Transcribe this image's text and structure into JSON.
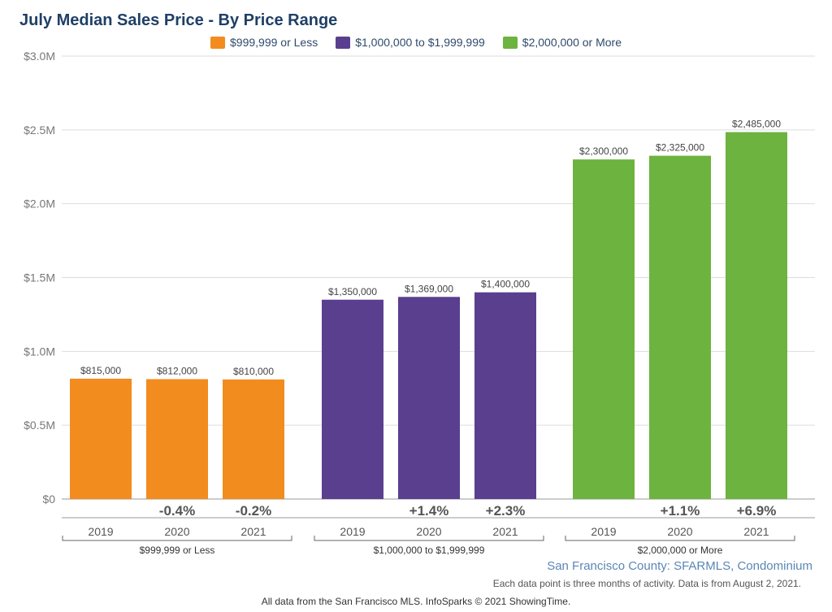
{
  "title": "July Median Sales Price - By Price Range",
  "legend": [
    {
      "label": "$999,999 or Less",
      "color": "#f28c1e"
    },
    {
      "label": "$1,000,000 to $1,999,999",
      "color": "#5a3f8f"
    },
    {
      "label": "$2,000,000 or More",
      "color": "#6db33f"
    }
  ],
  "source": "San Francisco County: SFARMLS, Condominium",
  "note": "Each data point is three months of activity. Data is from August 2, 2021.",
  "footer": "All data from the San Francisco MLS. InfoSparks © 2021 ShowingTime.",
  "chart_data": {
    "type": "bar",
    "title": "July Median Sales Price - By Price Range",
    "ylim": [
      0,
      3000000
    ],
    "yticks": [
      {
        "value": 0,
        "label": "$0"
      },
      {
        "value": 500000,
        "label": "$0.5M"
      },
      {
        "value": 1000000,
        "label": "$1.0M"
      },
      {
        "value": 1500000,
        "label": "$1.5M"
      },
      {
        "value": 2000000,
        "label": "$2.0M"
      },
      {
        "value": 2500000,
        "label": "$2.5M"
      },
      {
        "value": 3000000,
        "label": "$3.0M"
      }
    ],
    "grid": true,
    "legend_position": "top-center",
    "groups": [
      {
        "name": "$999,999 or Less",
        "color": "#f28c1e",
        "years": [
          "2019",
          "2020",
          "2021"
        ],
        "values": [
          815000,
          812000,
          810000
        ],
        "value_labels": [
          "$815,000",
          "$812,000",
          "$810,000"
        ],
        "changes": [
          "",
          "-0.4%",
          "-0.2%"
        ]
      },
      {
        "name": "$1,000,000 to $1,999,999",
        "color": "#5a3f8f",
        "years": [
          "2019",
          "2020",
          "2021"
        ],
        "values": [
          1350000,
          1369000,
          1400000
        ],
        "value_labels": [
          "$1,350,000",
          "$1,369,000",
          "$1,400,000"
        ],
        "changes": [
          "",
          "+1.4%",
          "+2.3%"
        ]
      },
      {
        "name": "$2,000,000 or More",
        "color": "#6db33f",
        "years": [
          "2019",
          "2020",
          "2021"
        ],
        "values": [
          2300000,
          2325000,
          2485000
        ],
        "value_labels": [
          "$2,300,000",
          "$2,325,000",
          "$2,485,000"
        ],
        "changes": [
          "",
          "+1.1%",
          "+6.9%"
        ]
      }
    ]
  }
}
